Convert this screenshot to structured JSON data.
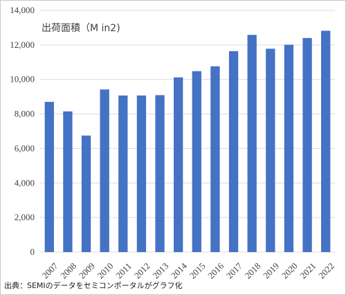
{
  "chart_data": {
    "type": "bar",
    "title": "出荷面積（M in2)",
    "xlabel": "",
    "ylabel": "",
    "ylim": [
      0,
      14000
    ],
    "yticks": [
      0,
      2000,
      4000,
      6000,
      8000,
      10000,
      12000,
      14000
    ],
    "ytick_labels": [
      "0",
      "2,000",
      "4,000",
      "6,000",
      "8,000",
      "10,000",
      "12,000",
      "14,000"
    ],
    "grid": true,
    "categories": [
      "2007",
      "2008",
      "2009",
      "2010",
      "2011",
      "2012",
      "2013",
      "2014",
      "2015",
      "2016",
      "2017",
      "2018",
      "2019",
      "2020",
      "2021",
      "2022"
    ],
    "values": [
      8700,
      8150,
      6750,
      9420,
      9070,
      9070,
      9090,
      10120,
      10480,
      10760,
      11640,
      12580,
      11780,
      12010,
      12400,
      12820
    ],
    "bar_color": "#4472c4"
  },
  "source_note": "出典：SEMIのデータをセミコンポータルがグラフ化"
}
